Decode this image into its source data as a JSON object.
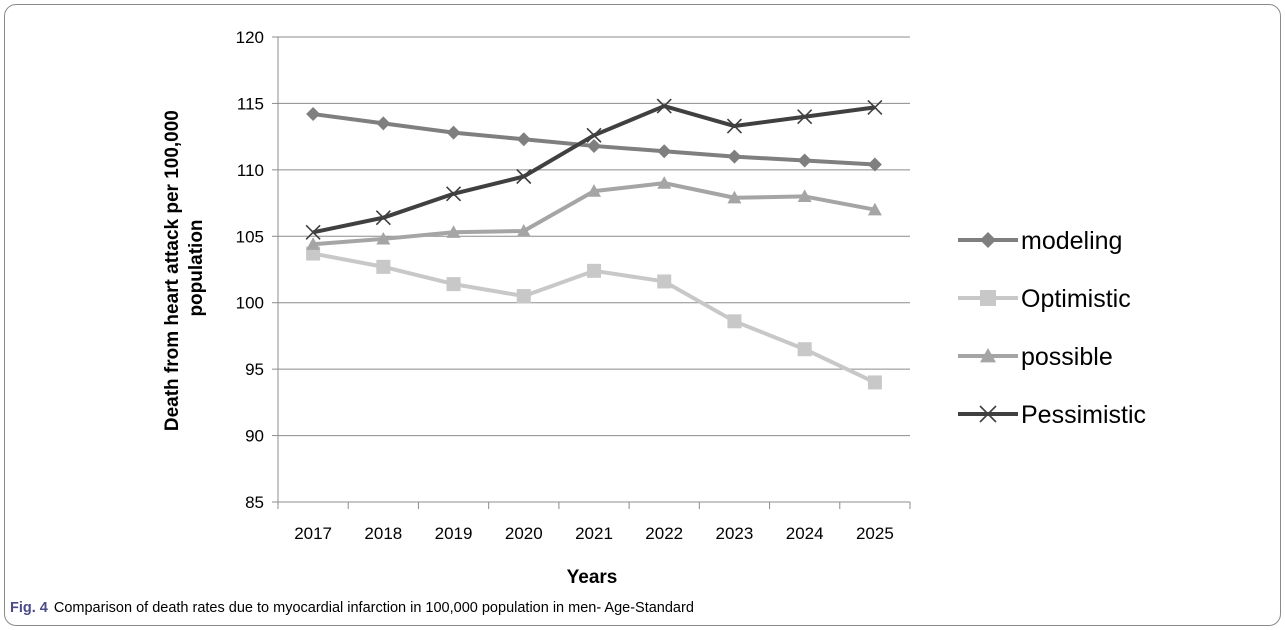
{
  "caption": {
    "label": "Fig. 4",
    "text": "Comparison of death rates due to myocardial infarction in 100,000 population in men- Age-Standard"
  },
  "chart_data": {
    "type": "line",
    "xlabel": "Years",
    "ylabel_lines": [
      "Death from heart attack per 100,000",
      "population"
    ],
    "categories": [
      "2017",
      "2018",
      "2019",
      "2020",
      "2021",
      "2022",
      "2023",
      "2024",
      "2025"
    ],
    "ylim": [
      85,
      120
    ],
    "yticks": [
      85,
      90,
      95,
      100,
      105,
      110,
      115,
      120
    ],
    "grid": true,
    "legend_position": "right",
    "series": [
      {
        "name": "modeling",
        "marker": "diamond",
        "color": "#7f7f7f",
        "values": [
          114.2,
          113.5,
          112.8,
          112.3,
          111.8,
          111.4,
          111.0,
          110.7,
          110.4
        ]
      },
      {
        "name": "Optimistic",
        "marker": "square",
        "color": "#c8c8c8",
        "values": [
          103.7,
          102.7,
          101.4,
          100.5,
          102.4,
          101.6,
          98.6,
          96.5,
          94.0
        ]
      },
      {
        "name": "possible",
        "marker": "triangle",
        "color": "#a5a5a5",
        "values": [
          104.4,
          104.8,
          105.3,
          105.4,
          108.4,
          109.0,
          107.9,
          108.0,
          107.0
        ]
      },
      {
        "name": "Pessimistic",
        "marker": "x",
        "color": "#404040",
        "values": [
          105.3,
          106.4,
          108.2,
          109.5,
          112.6,
          114.8,
          113.3,
          114.0,
          114.7
        ]
      }
    ]
  }
}
